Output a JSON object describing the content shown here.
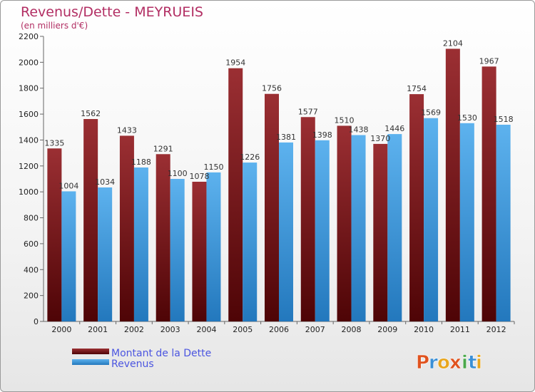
{
  "chart_data": {
    "type": "bar",
    "title": "Revenus/Dette - MEYRUEIS",
    "subtitle": "(en milliers d'€)",
    "categories": [
      "2000",
      "2001",
      "2002",
      "2003",
      "2004",
      "2005",
      "2006",
      "2007",
      "2008",
      "2009",
      "2010",
      "2011",
      "2012"
    ],
    "series": [
      {
        "name": "Montant de la Dette",
        "color": "#7a1416",
        "values": [
          1335,
          1562,
          1433,
          1291,
          1078,
          1954,
          1756,
          1577,
          1510,
          1370,
          1754,
          2104,
          1967
        ]
      },
      {
        "name": "Revenus",
        "color": "#3f97d9",
        "values": [
          1004,
          1034,
          1188,
          1100,
          1150,
          1226,
          1381,
          1398,
          1438,
          1446,
          1569,
          1530,
          1518
        ]
      }
    ],
    "ylim": [
      0,
      2200
    ],
    "yticks": [
      0,
      200,
      400,
      600,
      800,
      1000,
      1200,
      1400,
      1600,
      1800,
      2000,
      2200
    ],
    "grid": false,
    "legend": "bottom-left"
  },
  "logo": {
    "letters": [
      "P",
      "r",
      "o",
      "x",
      "i",
      "t",
      "i"
    ],
    "colors": [
      "#e0531f",
      "#3a8fd6",
      "#e8a61e",
      "#e0531f",
      "#4aa84a",
      "#3a8fd6",
      "#e8a61e"
    ]
  }
}
